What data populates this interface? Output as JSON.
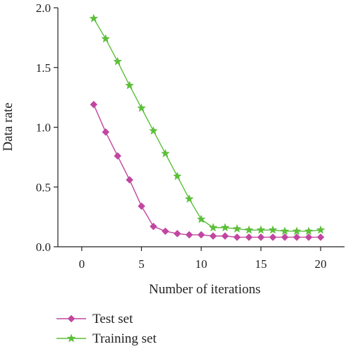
{
  "chart_data": {
    "type": "line",
    "xlabel": "Number of iterations",
    "ylabel": "Data rate",
    "xlim": [
      -2,
      22
    ],
    "ylim": [
      0,
      2.0
    ],
    "xticks": [
      0,
      5,
      10,
      15,
      20
    ],
    "yticks": [
      0.0,
      0.5,
      1.0,
      1.5,
      2.0
    ],
    "xtick_labels": [
      "0",
      "5",
      "10",
      "15",
      "20"
    ],
    "ytick_labels": [
      "0.0",
      "0.5",
      "1.0",
      "1.5",
      "2.0"
    ],
    "grid": false,
    "legend_position": "bottom-left",
    "x": [
      1,
      2,
      3,
      4,
      5,
      6,
      7,
      8,
      9,
      10,
      11,
      12,
      13,
      14,
      15,
      16,
      17,
      18,
      19,
      20
    ],
    "series": [
      {
        "name": "Test set",
        "color": "#c146a1",
        "marker": "diamond",
        "values": [
          1.19,
          0.96,
          0.76,
          0.56,
          0.34,
          0.17,
          0.13,
          0.11,
          0.1,
          0.1,
          0.09,
          0.09,
          0.08,
          0.08,
          0.08,
          0.08,
          0.08,
          0.08,
          0.08,
          0.08
        ]
      },
      {
        "name": "Training set",
        "color": "#5cbf3a",
        "marker": "star",
        "values": [
          1.91,
          1.74,
          1.55,
          1.35,
          1.16,
          0.97,
          0.78,
          0.59,
          0.4,
          0.23,
          0.16,
          0.16,
          0.15,
          0.14,
          0.14,
          0.14,
          0.13,
          0.13,
          0.13,
          0.14
        ]
      }
    ]
  }
}
